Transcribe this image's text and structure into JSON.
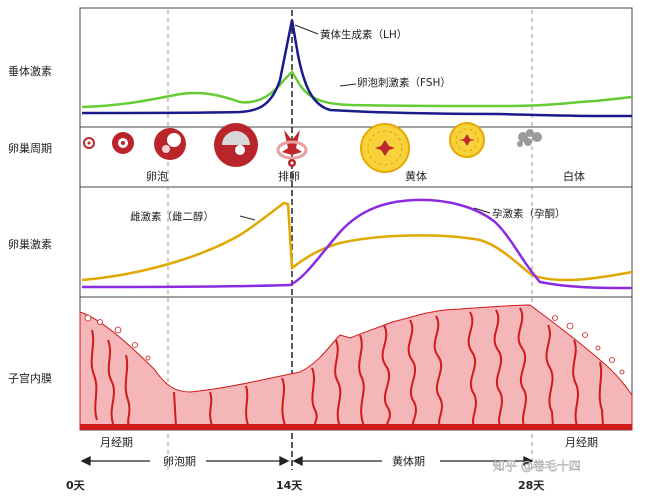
{
  "rows": {
    "pituitary": "垂体激素",
    "ovary_cycle": "卵巢周期",
    "ovarian_hormones": "卵巢激素",
    "endometrium": "子宫内膜"
  },
  "hormone_labels": {
    "lh": "黄体生成素（LH）",
    "fsh": "卵泡刺激素（FSH）",
    "estrogen": "雌激素（雌二醇）",
    "progesterone": "孕激素（孕酮）"
  },
  "ovary_stages": {
    "follicle": "卵泡",
    "ovulation": "排卵",
    "corpus_luteum": "黄体",
    "corpus_albicans": "白体"
  },
  "phases": {
    "menses_start": "月经期",
    "menses_end": "月经期",
    "follicular": "卵泡期",
    "luteal": "黄体期"
  },
  "days": {
    "d0": "0天",
    "d14": "14天",
    "d28": "28天"
  },
  "watermark": "知乎 @卷毛十四",
  "colors": {
    "lh": "#1a1a8c",
    "fsh": "#66cc33",
    "estrogen": "#e0a800",
    "progesterone": "#8a2be2",
    "endometrium_fill": "#f4b6b9",
    "endometrium_vessel": "#d11a1a",
    "corpus_luteum": "#f7d23a"
  }
}
